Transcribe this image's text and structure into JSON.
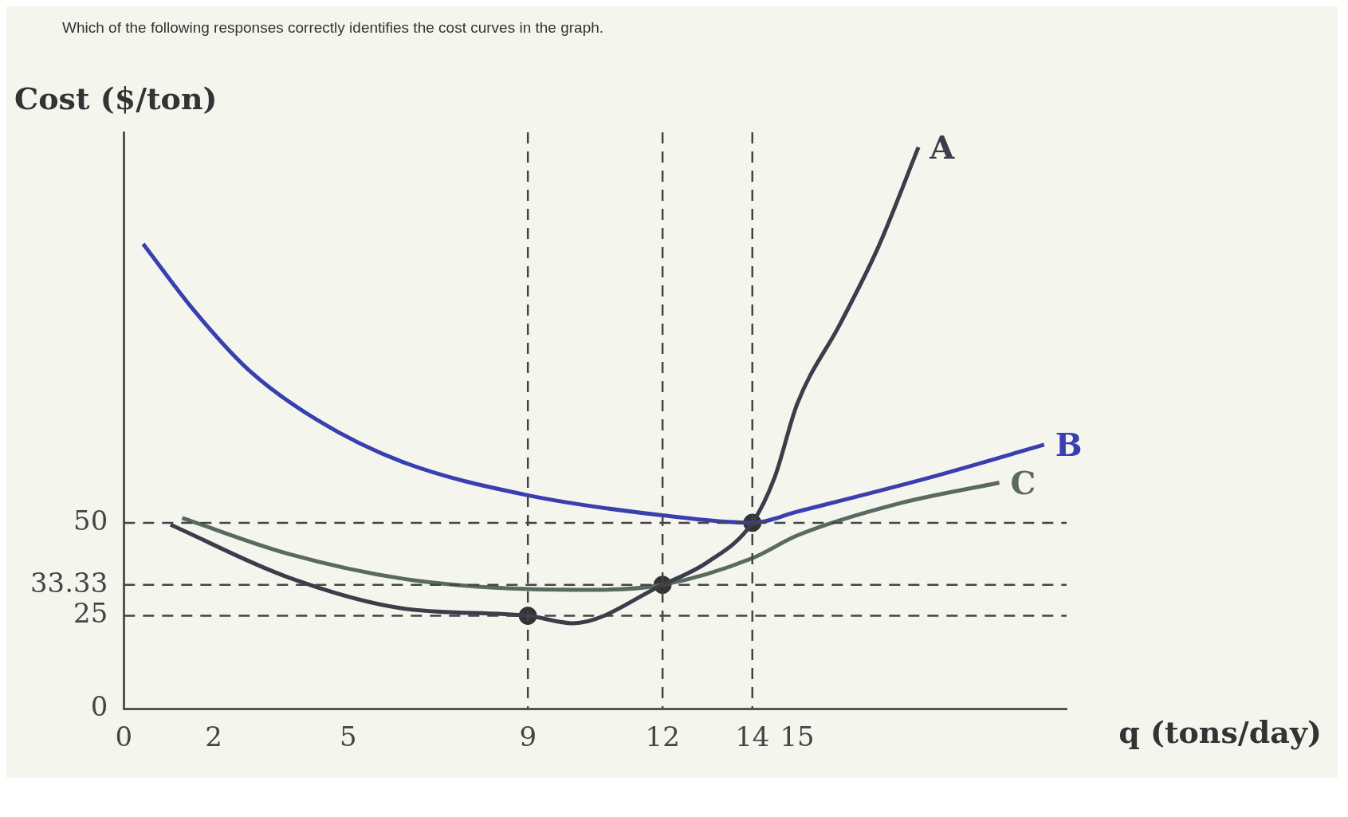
{
  "chart_data": {
    "type": "line",
    "title": "Which of the following responses correctly identifies the cost curves in the graph.",
    "xlabel": "q (tons/day)",
    "ylabel": "Cost ($/ton)",
    "xlim": [
      0,
      21
    ],
    "ylim": [
      0,
      155
    ],
    "xticks": [
      0,
      2,
      5,
      9,
      12,
      14,
      15
    ],
    "yticks": [
      0,
      25,
      33.33,
      50
    ],
    "grid": false,
    "legend": false,
    "marker": "none",
    "line_style": "solid",
    "series": [
      {
        "name": "A",
        "color": "#3c3c4a",
        "x": [
          1.04,
          3.65,
          6.2,
          9,
          10,
          12,
          13,
          14,
          14.49,
          15,
          15.96,
          16.8,
          17.7
        ],
        "values": [
          49.5,
          35.4,
          27,
          25,
          23,
          33.33,
          39.4,
          50,
          62,
          82,
          103.6,
          124,
          151
        ]
      },
      {
        "name": "B",
        "color": "#3a3fb0",
        "x": [
          0.43,
          1.57,
          2.79,
          4.3,
          6.2,
          9,
          12,
          14,
          15,
          17.9,
          20.5
        ],
        "values": [
          125,
          107,
          91,
          77.7,
          66.4,
          57.4,
          52,
          50,
          53,
          62,
          71
        ]
      },
      {
        "name": "C",
        "color": "#5a6a60",
        "x": [
          1.3,
          3.65,
          6.2,
          9,
          10.5,
          12,
          14,
          15,
          17.2,
          19.5
        ],
        "values": [
          51.3,
          41.7,
          35,
          32.2,
          32,
          33.33,
          40.5,
          46.6,
          55,
          60.8
        ]
      },
      {
        "type": "scatter",
        "marker": "circle",
        "color": "#333333",
        "x": [
          9,
          12,
          14
        ],
        "values": [
          25,
          33.33,
          50
        ]
      }
    ],
    "ref_lines": [
      {
        "axis": "y",
        "value": 50,
        "line_style": "dashed",
        "color": "#444444"
      },
      {
        "axis": "y",
        "value": 33.33,
        "line_style": "dashed",
        "color": "#444444"
      },
      {
        "axis": "y",
        "value": 25,
        "line_style": "dashed",
        "color": "#444444"
      },
      {
        "axis": "x",
        "value": 9,
        "line_style": "dashed",
        "color": "#444444"
      },
      {
        "axis": "x",
        "value": 12,
        "line_style": "dashed",
        "color": "#444444"
      },
      {
        "axis": "x",
        "value": 14,
        "line_style": "dashed",
        "color": "#444444"
      }
    ]
  }
}
